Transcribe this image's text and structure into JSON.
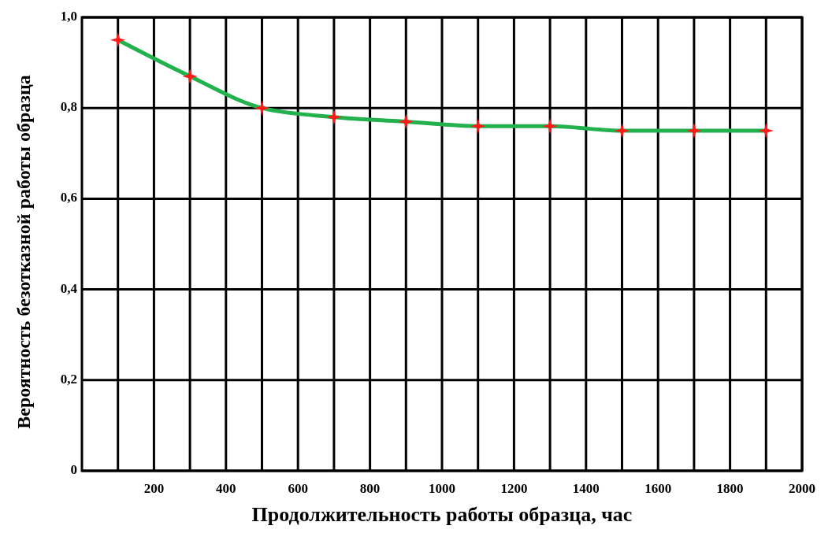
{
  "chart_data": {
    "type": "line",
    "xlabel": "Продолжительность работы образца, час",
    "ylabel": "Вероятность безотказной работы образца",
    "x": [
      100,
      300,
      500,
      700,
      900,
      1100,
      1300,
      1500,
      1700,
      1900
    ],
    "series": [
      {
        "color": "#22b14c",
        "values": [
          0.95,
          0.87,
          0.8,
          0.78,
          0.77,
          0.76,
          0.76,
          0.75,
          0.75,
          0.75
        ]
      }
    ],
    "xlim": [
      0,
      2000
    ],
    "ylim": [
      0,
      1.0
    ],
    "xticks": [
      {
        "value": 100,
        "label": null
      },
      200,
      {
        "value": 300,
        "label": null
      },
      400,
      {
        "value": 500,
        "label": null
      },
      600,
      {
        "value": 700,
        "label": null
      },
      800,
      {
        "value": 900,
        "label": null
      },
      1000,
      {
        "value": 1100,
        "label": null
      },
      1200,
      {
        "value": 1300,
        "label": null
      },
      1400,
      {
        "value": 1500,
        "label": null
      },
      1600,
      {
        "value": 1700,
        "label": null
      },
      1800,
      {
        "value": 1900,
        "label": null
      },
      2000
    ],
    "yticks": [
      {
        "value": 0,
        "label": "0"
      },
      {
        "value": 0.2,
        "label": "0,2"
      },
      {
        "value": 0.4,
        "label": "0,4"
      },
      {
        "value": 0.6,
        "label": "0,6"
      },
      {
        "value": 0.8,
        "label": "0,8"
      },
      {
        "value": 1.0,
        "label": "1,0"
      }
    ],
    "grid": true,
    "marker": "cross",
    "line_style": "solid"
  }
}
